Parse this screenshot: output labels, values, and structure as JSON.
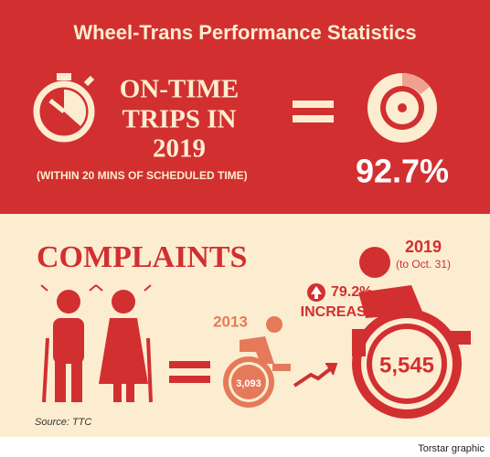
{
  "title": "Wheel-Trans Performance Statistics",
  "on_time": {
    "heading": [
      "ON-TIME",
      "TRIPS IN",
      "2019"
    ],
    "note": "(WITHIN 20 MINS OF SCHEDULED TIME)",
    "value": "92.7%"
  },
  "complaints": {
    "heading": "COMPLAINTS",
    "year_2013": "2013",
    "count_2013": "3,093",
    "year_2019": "2019",
    "period_2019": "(to Oct. 31)",
    "count_2019": "5,545",
    "increase": "79.2%",
    "increase_label": "INCREASE"
  },
  "source": "Source: TTC",
  "credit": "Torstar graphic"
}
